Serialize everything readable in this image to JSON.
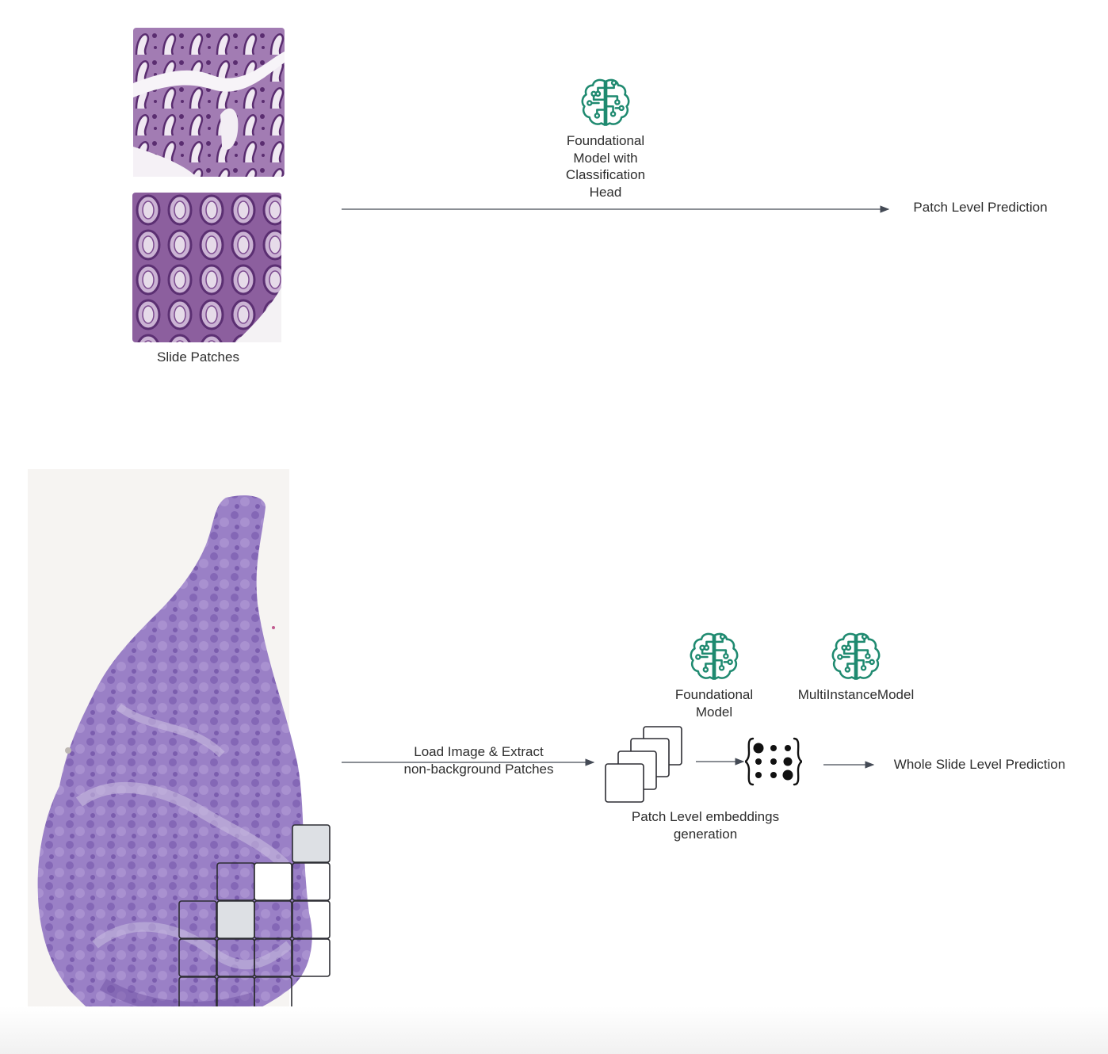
{
  "top": {
    "slide_patches_label": "Slide Patches",
    "model_label": "Foundational\nModel with\nClassification\nHead",
    "model_icon": "brain-circuit-icon",
    "output_label": "Patch Level Prediction"
  },
  "bottom": {
    "load_label": "Load Image & Extract\nnon-background Patches",
    "foundational_label": "Foundational\nModel",
    "mil_label": "MultiInstanceModel",
    "embeddings_label": "Patch Level embeddings\ngeneration",
    "output_label": "Whole Slide Level Prediction"
  },
  "colors": {
    "icon": "#1f8a70",
    "tissue": "#9b7ec7",
    "tissue_dark": "#7a5aa8",
    "patch_fill": "#dde0e4",
    "arrow": "#444a55"
  }
}
